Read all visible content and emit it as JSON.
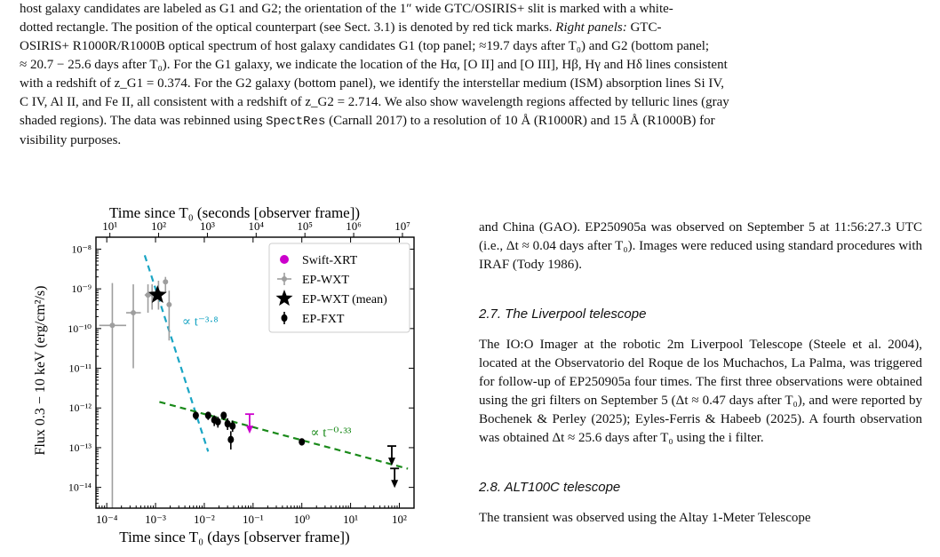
{
  "caption": {
    "line1": "host galaxy candidates are labeled as G1 and G2; the orientation of the 1″ wide GTC/OSIRIS+ slit is marked with a white-",
    "line2": "dotted rectangle. The position of the optical counterpart (see Sect. 3.1) is denoted by red tick marks.",
    "right_panels_label": "Right panels:",
    "line2_end": "GTC-",
    "line3": "OSIRIS+ R1000R/R1000B optical spectrum of host galaxy candidates G1 (top panel; ≈19.7 days after T₀) and G2 (bottom panel;",
    "line4": "≈ 20.7 − 25.6 days after T₀). For the G1 galaxy, we indicate the location of the Hα, [O II] and [O III], Hβ, Hγ and Hδ lines consistent",
    "line5": "with a redshift of z_G1 = 0.374. For the G2 galaxy (bottom panel), we identify the interstellar medium (ISM) absorption lines Si IV,",
    "line6": "C IV, Al II, and Fe II, all consistent with a redshift of z_G2 = 2.714. We also show wavelength regions affected by telluric lines (gray",
    "line7_a": "shaded regions). The data was rebinned using",
    "software": "SpectRes",
    "line7_b": "(Carnall 2017) to a resolution of 10 Å (R1000R) and 15 Å (R1000B) for",
    "line8": "visibility purposes."
  },
  "right_column": {
    "para1": "and China (GAO). EP250905a was observed on September 5 at 11:56:27.3 UTC (i.e., Δt ≈ 0.04 days after T₀). Images were reduced using standard procedures with IRAF (Tody 1986).",
    "section_27": "2.7. The Liverpool telescope",
    "para2": "The IO:O Imager at the robotic 2m Liverpool Telescope (Steele et al. 2004), located at the Observatorio del Roque de los Muchachos, La Palma, was triggered for follow-up of EP250905a four times. The first three observations were obtained using the gri filters on September 5 (Δt ≈ 0.47 days after T₀), and were reported by Bochenek & Perley (2025); Eyles-Ferris & Habeeb (2025). A fourth observation was obtained Δt ≈ 25.6 days after T₀ using the i filter.",
    "section_28": "2.8. ALT100C telescope",
    "para3": "The transient was observed using the Altay 1-Meter Telescope"
  },
  "chart_data": {
    "type": "scatter",
    "xscale": "log",
    "yscale": "log",
    "xlabel": "Time since T₀ (days [observer frame])",
    "ylabel": "Flux 0.3 − 10 keV (erg/cm²/s)",
    "top_xlabel": "Time since T₀ (seconds [observer frame])",
    "xlim": [
      6e-05,
      200
    ],
    "ylim": [
      3e-15,
      2e-08
    ],
    "xticks": [
      "10⁻⁴",
      "10⁻³",
      "10⁻²",
      "10⁻¹",
      "10⁰",
      "10¹",
      "10²"
    ],
    "yticks": [
      "10⁻⁸",
      "10⁻⁹",
      "10⁻¹⁰",
      "10⁻¹¹",
      "10⁻¹²",
      "10⁻¹³",
      "10⁻¹⁴"
    ],
    "top_xticks": [
      "10¹",
      "10²",
      "10³",
      "10⁴",
      "10⁵",
      "10⁶",
      "10⁷"
    ],
    "legend_position": "top-right",
    "legend": [
      "Swift-XRT",
      "EP-WXT",
      "EP-WXT (mean)",
      "EP-FXT"
    ],
    "series": [
      {
        "name": "EP-WXT",
        "color": "#9e9e9e",
        "points": [
          {
            "x": 0.00013,
            "y": 1.2e-10,
            "xerr": [
              7e-05,
              0.00025
            ],
            "yerr": [
              3e-15,
              1.4e-09
            ]
          },
          {
            "x": 0.00035,
            "y": 2.5e-10,
            "xerr": [
              0.00025,
              0.0005
            ],
            "yerr": [
              1e-11,
              1.3e-09
            ]
          },
          {
            "x": 0.0007,
            "y": 7e-10,
            "xerr": [
              0.0006,
              0.0008
            ],
            "yerr": [
              2.5e-10,
              1.3e-09
            ]
          },
          {
            "x": 0.00085,
            "y": 7.5e-10,
            "xerr": [
              0.0008,
              0.0009
            ],
            "yerr": [
              3e-10,
              1.3e-09
            ]
          },
          {
            "x": 0.00115,
            "y": 8e-10,
            "xerr": [
              0.0011,
              0.0012
            ],
            "yerr": [
              3e-10,
              1.6e-09
            ]
          },
          {
            "x": 0.0016,
            "y": 1.5e-09,
            "xerr": [
              0.0015,
              0.0017
            ],
            "yerr": [
              8e-10,
              2e-09
            ]
          },
          {
            "x": 0.0019,
            "y": 4e-10,
            "xerr": [
              0.0018,
              0.002
            ],
            "yerr": [
              5e-11,
              9e-10
            ]
          }
        ]
      },
      {
        "name": "EP-WXT (mean)",
        "color": "#000000",
        "points": [
          {
            "x": 0.0011,
            "y": 7e-10
          }
        ]
      },
      {
        "name": "EP-FXT",
        "color": "#000000",
        "points": [
          {
            "x": 0.0067,
            "y": 6.5e-13,
            "yerr": [
              5e-13,
              8e-13
            ]
          },
          {
            "x": 0.012,
            "y": 6.5e-13,
            "yerr": [
              5e-13,
              8e-13
            ]
          },
          {
            "x": 0.016,
            "y": 5e-13,
            "yerr": [
              3.5e-13,
              6.5e-13
            ]
          },
          {
            "x": 0.019,
            "y": 4.5e-13,
            "yerr": [
              3.2e-13,
              6e-13
            ]
          },
          {
            "x": 0.025,
            "y": 6.5e-13,
            "yerr": [
              5e-13,
              8e-13
            ]
          },
          {
            "x": 0.03,
            "y": 4e-13,
            "yerr": [
              2.8e-13,
              5.5e-13
            ]
          },
          {
            "x": 0.035,
            "y": 1.6e-13,
            "yerr": [
              9e-14,
              2.6e-13
            ]
          },
          {
            "x": 0.038,
            "y": 3.5e-13,
            "yerr": [
              2.5e-13,
              4.8e-13
            ]
          },
          {
            "x": 1.0,
            "y": 1.4e-13
          },
          {
            "x": 70,
            "y": 1.1e-13,
            "upper_limit": true
          },
          {
            "x": 80,
            "y": 3e-14,
            "upper_limit": true
          }
        ]
      },
      {
        "name": "Swift-XRT",
        "color": "#cc00cc",
        "points": [
          {
            "x": 0.085,
            "y": 7e-13,
            "upper_limit": true
          }
        ]
      }
    ],
    "fits": [
      {
        "label": "∝ t⁻³·⁸",
        "color": "#1aa5c4",
        "x_range": [
          0.0006,
          0.012
        ],
        "slope": -3.8,
        "anchor": {
          "x": 0.0011,
          "y": 7e-10
        }
      },
      {
        "label": "∝ t⁻⁰·³³",
        "color": "#1a8a1a",
        "x_range": [
          0.0012,
          150
        ],
        "slope": -0.33,
        "anchor": {
          "x": 0.1,
          "y": 3.3e-13
        }
      }
    ]
  }
}
